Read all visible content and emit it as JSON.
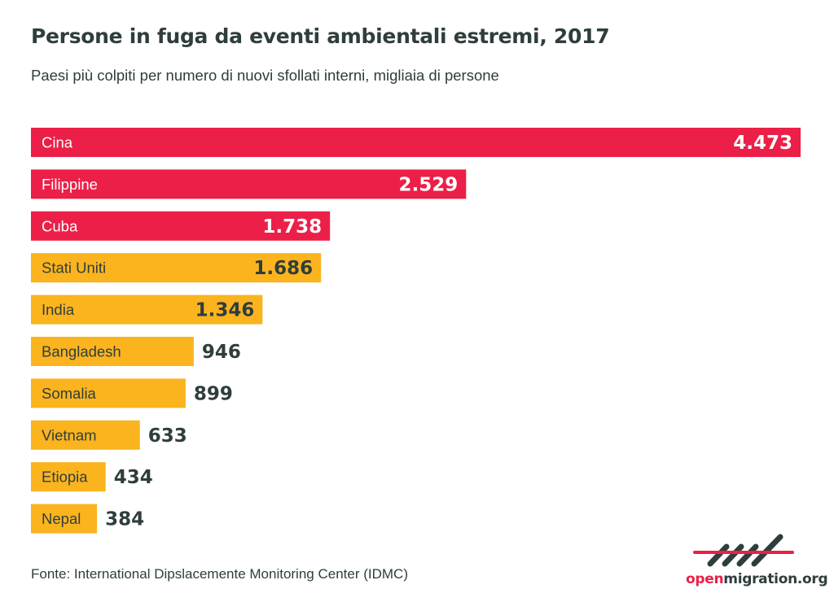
{
  "chart_data": {
    "type": "bar",
    "orientation": "horizontal",
    "title": "Persone in fuga da eventi ambientali estremi, 2017",
    "subtitle": "Paesi più colpiti per numero di nuovi sfollati interni, migliaia di persone",
    "categories": [
      "Cina",
      "Filippine",
      "Cuba",
      "Stati Uniti",
      "India",
      "Bangladesh",
      "Somalia",
      "Vietnam",
      "Etiopia",
      "Nepal"
    ],
    "values": [
      4473,
      2529,
      1738,
      1686,
      1346,
      946,
      899,
      633,
      434,
      384
    ],
    "value_labels": [
      "4.473",
      "2.529",
      "1.738",
      "1.686",
      "1.346",
      "946",
      "899",
      "633",
      "434",
      "384"
    ],
    "highlight_count": 3,
    "colors": {
      "highlight": "#ec1f48",
      "default": "#fbb41e",
      "text": "#2f3d3d"
    },
    "xlim": [
      0,
      4473
    ],
    "grid": false
  },
  "source": "Fonte:  International Dipslacemente Monitoring Center (IDMC)",
  "logo": {
    "text_a": "open",
    "text_b": "migration.org"
  }
}
